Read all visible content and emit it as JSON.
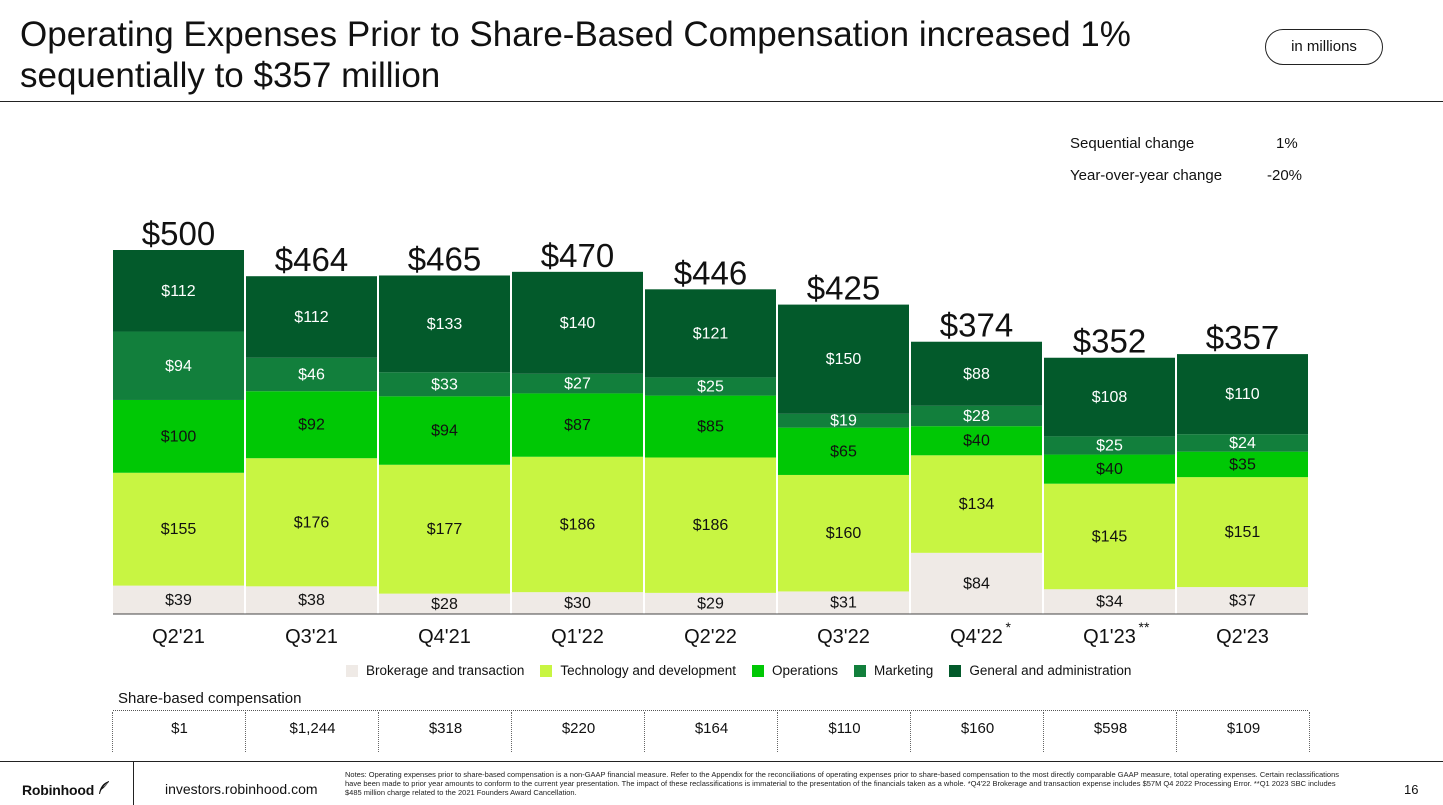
{
  "header": {
    "title_line1": "Operating Expenses Prior to Share-Based Compensation increased 1%",
    "title_line2": "sequentially to $357 million",
    "units_badge": "in millions"
  },
  "changes": [
    {
      "label": "Sequential change",
      "value": "1%"
    },
    {
      "label": "Year-over-year change",
      "value": "-20%"
    }
  ],
  "colors": {
    "brokerage": "#efeae6",
    "technology": "#c8f542",
    "operations": "#00c805",
    "marketing": "#127f3c",
    "ga": "#035a2b"
  },
  "chart_data": {
    "type": "bar",
    "stacked": true,
    "categories": [
      "Q2'21",
      "Q3'21",
      "Q4'21",
      "Q1'22",
      "Q2'22",
      "Q3'22",
      "Q4'22",
      "Q1'23",
      "Q2'23"
    ],
    "category_markers": [
      "",
      "",
      "",
      "",
      "",
      "",
      "*",
      "**",
      ""
    ],
    "totals": [
      500,
      464,
      465,
      470,
      446,
      425,
      374,
      352,
      357
    ],
    "total_labels": [
      "$500",
      "$464",
      "$465",
      "$470",
      "$446",
      "$425",
      "$374",
      "$352",
      "$357"
    ],
    "series": [
      {
        "name": "Brokerage and transaction",
        "key": "brokerage",
        "values": [
          39,
          38,
          28,
          30,
          29,
          31,
          84,
          34,
          37
        ]
      },
      {
        "name": "Technology and development",
        "key": "technology",
        "values": [
          155,
          176,
          177,
          186,
          186,
          160,
          134,
          145,
          151
        ]
      },
      {
        "name": "Operations",
        "key": "operations",
        "values": [
          100,
          92,
          94,
          87,
          85,
          65,
          40,
          40,
          35
        ]
      },
      {
        "name": "Marketing",
        "key": "marketing",
        "values": [
          94,
          46,
          33,
          27,
          25,
          19,
          28,
          25,
          24
        ]
      },
      {
        "name": "General and administration",
        "key": "ga",
        "values": [
          112,
          112,
          133,
          140,
          121,
          150,
          88,
          108,
          110
        ]
      }
    ],
    "value_prefix": "$",
    "ylim": [
      0,
      500
    ],
    "legend": "bottom"
  },
  "share_based": {
    "title": "Share-based compensation",
    "values": [
      "$1",
      "$1,244",
      "$318",
      "$220",
      "$164",
      "$110",
      "$160",
      "$598",
      "$109"
    ]
  },
  "footer": {
    "logo": "Robinhood",
    "site": "investors.robinhood.com",
    "notes": "Notes: Operating expenses prior to share-based compensation is a non-GAAP financial measure. Refer to the Appendix for the reconciliations of operating expenses prior to share-based compensation to the most directly comparable GAAP measure, total operating expenses. Certain reclassifications have been made to prior year amounts to conform to the current year presentation. The impact of these reclassifications is immaterial to the presentation of the financials taken as a whole. *Q4'22 Brokerage and transaction expense includes $57M Q4 2022 Processing Error. **Q1 2023 SBC includes $485 million charge related to the 2021 Founders Award Cancellation.",
    "page": "16"
  }
}
